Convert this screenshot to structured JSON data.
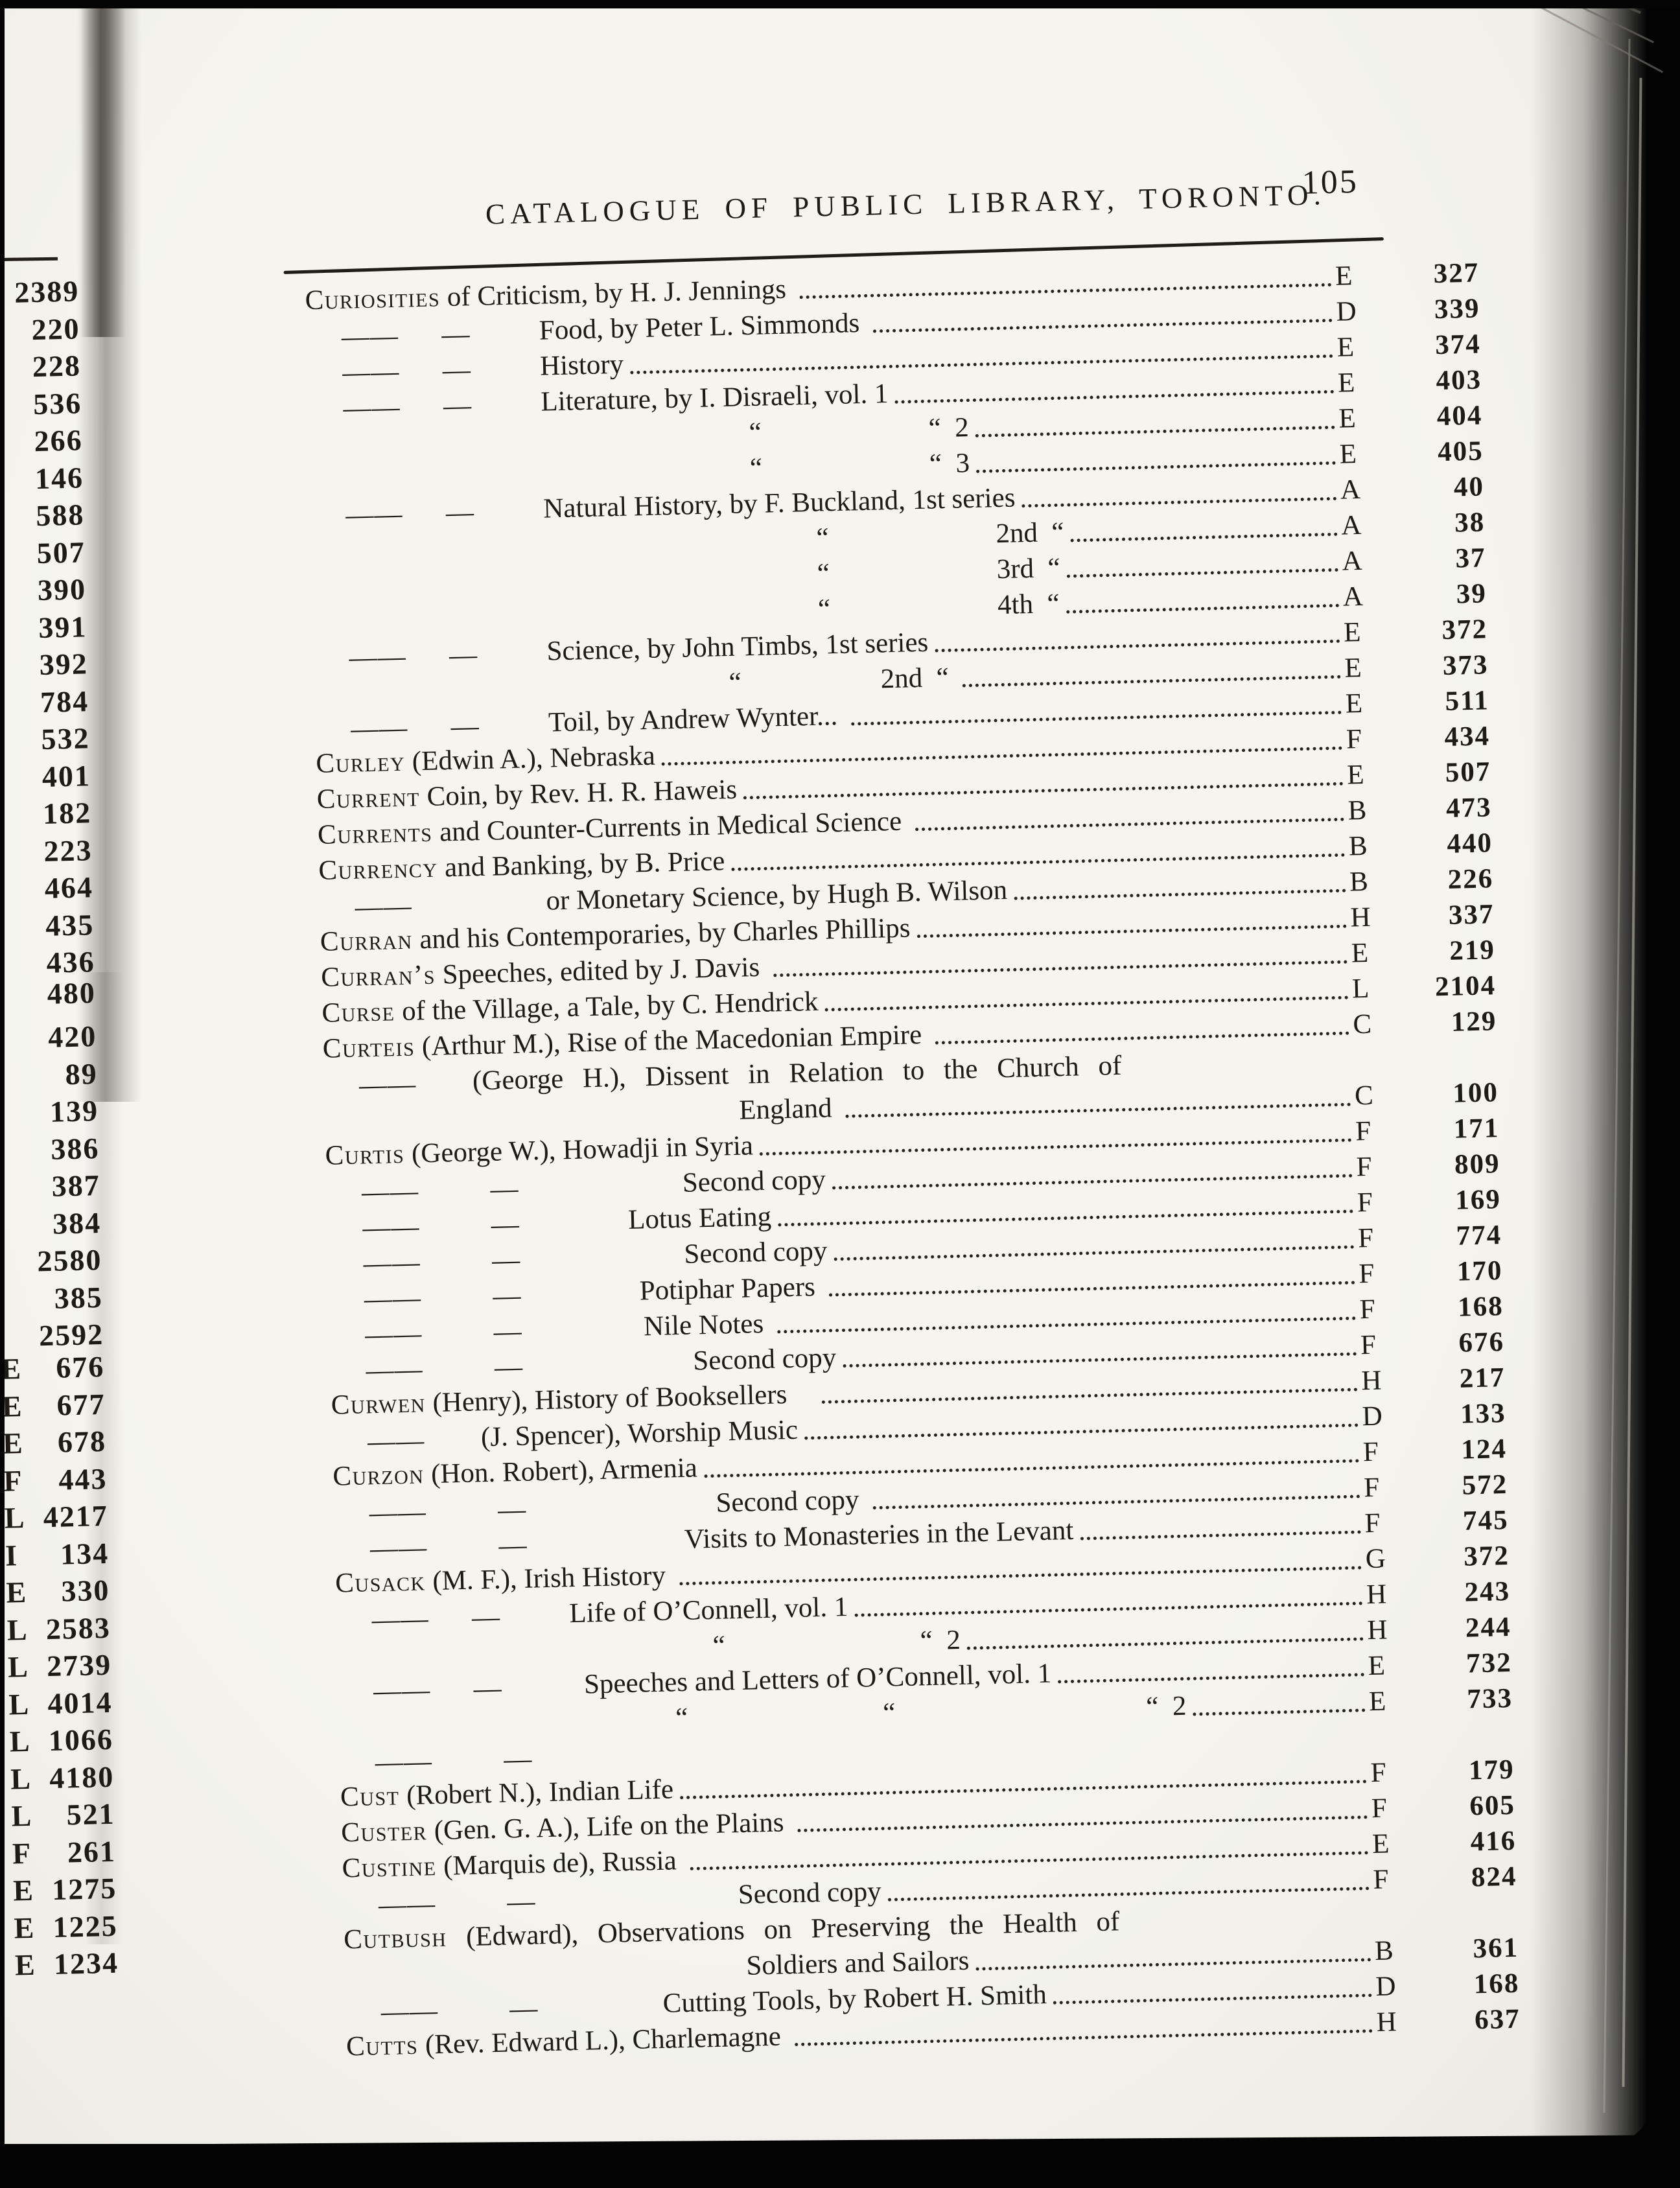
{
  "colors": {
    "paper": "#f5f4ef",
    "ink": "#1e1b17",
    "scan_black": "#050505"
  },
  "header": {
    "title": "CATALOGUE OF PUBLIC LIBRARY, TORONTO.",
    "page_number": "105"
  },
  "entries": [
    {
      "dashes": "",
      "head": "Curiosities",
      "text": " of Criticism, by H. J. Jennings ",
      "indent": 0,
      "leader": true,
      "code": "E",
      "num": "327"
    },
    {
      "dashes": "——  —",
      "head": "",
      "text": "Food, by Peter L. Simmonds ",
      "indent": 360,
      "leader": true,
      "code": "D",
      "num": "339"
    },
    {
      "dashes": "——  —",
      "head": "",
      "text": "History",
      "indent": 360,
      "leader": true,
      "code": "E",
      "num": "374"
    },
    {
      "dashes": "——  —",
      "head": "",
      "text": "Literature, by I. Disraeli, vol. 1",
      "indent": 360,
      "leader": true,
      "code": "E",
      "num": "403"
    },
    {
      "dashes": "",
      "head": "",
      "text": "“      “  2",
      "indent": 680,
      "leader": true,
      "code": "E",
      "num": "404"
    },
    {
      "dashes": "",
      "head": "",
      "text": "“      “  3",
      "indent": 680,
      "leader": true,
      "code": "E",
      "num": "405"
    },
    {
      "dashes": "——  —",
      "head": "",
      "text": "Natural History, by F. Buckland, 1st series",
      "indent": 360,
      "leader": true,
      "code": "A",
      "num": "40"
    },
    {
      "dashes": "",
      "head": "",
      "text": "“      2nd “",
      "indent": 780,
      "leader": true,
      "code": "A",
      "num": "38"
    },
    {
      "dashes": "",
      "head": "",
      "text": "“      3rd “",
      "indent": 780,
      "leader": true,
      "code": "A",
      "num": "37"
    },
    {
      "dashes": "",
      "head": "",
      "text": "“      4th “",
      "indent": 780,
      "leader": true,
      "code": "A",
      "num": "39"
    },
    {
      "dashes": "——  —",
      "head": "",
      "text": "Science, by John Timbs, 1st series",
      "indent": 360,
      "leader": true,
      "code": "E",
      "num": "372"
    },
    {
      "dashes": "",
      "head": "",
      "text": "“     2nd “ ",
      "indent": 640,
      "leader": true,
      "code": "E",
      "num": "373"
    },
    {
      "dashes": "——  —",
      "head": "",
      "text": "Toil, by Andrew Wynter... ",
      "indent": 360,
      "leader": true,
      "code": "E",
      "num": "511"
    },
    {
      "dashes": "",
      "head": "Curley",
      "text": " (Edwin A.), Nebraska",
      "indent": 0,
      "leader": true,
      "code": "F",
      "num": "434"
    },
    {
      "dashes": "",
      "head": "Current",
      "text": " Coin, by Rev. H. R. Haweis",
      "indent": 0,
      "leader": true,
      "code": "E",
      "num": "507"
    },
    {
      "dashes": "",
      "head": "Currents",
      "text": " and Counter-Currents in Medical Science ",
      "indent": 0,
      "leader": true,
      "code": "B",
      "num": "473"
    },
    {
      "dashes": "",
      "head": "Currency",
      "text": " and Banking, by B. Price",
      "indent": 0,
      "leader": true,
      "code": "B",
      "num": "440"
    },
    {
      "dashes": "——",
      "head": "",
      "text": "or Monetary Science, by Hugh B. Wilson",
      "indent": 350,
      "leader": true,
      "code": "B",
      "num": "226"
    },
    {
      "dashes": "",
      "head": "Curran",
      "text": " and his Contemporaries, by Charles Phillips",
      "indent": 0,
      "leader": true,
      "code": "H",
      "num": "337"
    },
    {
      "dashes": "",
      "head": "Curran’s",
      "text": " Speeches, edited by J. Davis ",
      "indent": 0,
      "leader": true,
      "code": "E",
      "num": "219"
    },
    {
      "dashes": "",
      "head": "Curse",
      "text": " of the Village, a Tale, by C. Hendrick",
      "indent": 0,
      "leader": true,
      "code": "L",
      "num": "2104"
    },
    {
      "dashes": "",
      "head": "Curteis",
      "text": " (Arthur M.), Rise of the Macedonian Empire ",
      "indent": 0,
      "leader": true,
      "code": "C",
      "num": "129"
    },
    {
      "dashes": "——",
      "head": "",
      "text": "(George H.), Dissent in Relation to the Church of",
      "indent": 230,
      "leader": false,
      "code": "",
      "num": "",
      "spread": true
    },
    {
      "dashes": "",
      "head": "",
      "text": "England ",
      "indent": 640,
      "leader": true,
      "code": "C",
      "num": "100"
    },
    {
      "dashes": "",
      "head": "Curtis",
      "text": " (George W.), Howadji in Syria",
      "indent": 0,
      "leader": true,
      "code": "F",
      "num": "171"
    },
    {
      "dashes": "——   —",
      "head": "",
      "text": "Second copy",
      "indent": 550,
      "leader": true,
      "code": "F",
      "num": "809"
    },
    {
      "dashes": "——   —",
      "head": "",
      "text": "Lotus Eating",
      "indent": 465,
      "leader": true,
      "code": "F",
      "num": "169"
    },
    {
      "dashes": "——   —",
      "head": "",
      "text": "Second copy",
      "indent": 550,
      "leader": true,
      "code": "F",
      "num": "774"
    },
    {
      "dashes": "——   —",
      "head": "",
      "text": "Potiphar Papers ",
      "indent": 480,
      "leader": true,
      "code": "F",
      "num": "170"
    },
    {
      "dashes": "——   —",
      "head": "",
      "text": "Nile Notes ",
      "indent": 485,
      "leader": true,
      "code": "F",
      "num": "168"
    },
    {
      "dashes": "——   —",
      "head": "",
      "text": "Second copy",
      "indent": 560,
      "leader": true,
      "code": "F",
      "num": "676"
    },
    {
      "dashes": "",
      "head": "Curwen",
      "text": " (Henry), History of Booksellers ",
      "indent": 0,
      "leader": true,
      "code": "H",
      "num": "217"
    },
    {
      "dashes": "——",
      "head": "",
      "text": "(J. Spencer), Worship Music",
      "indent": 230,
      "leader": true,
      "code": "D",
      "num": "133"
    },
    {
      "dashes": "",
      "head": "Curzon",
      "text": " (Hon. Robert), Armenia",
      "indent": 0,
      "leader": true,
      "code": "F",
      "num": "124"
    },
    {
      "dashes": "——   —",
      "head": "",
      "text": "Second copy ",
      "indent": 590,
      "leader": true,
      "code": "F",
      "num": "572"
    },
    {
      "dashes": "——   —",
      "head": "",
      "text": "Visits to Monasteries in the Levant",
      "indent": 540,
      "leader": true,
      "code": "F",
      "num": "745"
    },
    {
      "dashes": "",
      "head": "Cusack",
      "text": " (M. F.), Irish History ",
      "indent": 0,
      "leader": true,
      "code": "G",
      "num": "372"
    },
    {
      "dashes": "——  —",
      "head": "",
      "text": "Life of O’Connell, vol. 1",
      "indent": 360,
      "leader": true,
      "code": "H",
      "num": "243"
    },
    {
      "dashes": "",
      "head": "",
      "text": "“       “  2",
      "indent": 580,
      "leader": true,
      "code": "H",
      "num": "244"
    },
    {
      "dashes": "——  —",
      "head": "",
      "text": "Speeches and Letters of O’Connell, vol. 1",
      "indent": 380,
      "leader": true,
      "code": "E",
      "num": "732"
    },
    {
      "dashes": "",
      "head": "",
      "text": "“       “         “  2",
      "indent": 520,
      "leader": true,
      "code": "E",
      "num": "733"
    },
    {
      "dashes": "——   —",
      "head": "",
      "text": "",
      "indent": 0,
      "leader": false,
      "code": "",
      "num": ""
    },
    {
      "dashes": "",
      "head": "Cust",
      "text": " (Robert N.), Indian Life",
      "indent": 0,
      "leader": true,
      "code": "F",
      "num": "179"
    },
    {
      "dashes": "",
      "head": "Custer",
      "text": " (Gen. G. A.), Life on the Plains ",
      "indent": 0,
      "leader": true,
      "code": "F",
      "num": "605"
    },
    {
      "dashes": "",
      "head": "Custine",
      "text": " (Marquis de), Russia ",
      "indent": 0,
      "leader": true,
      "code": "E",
      "num": "416"
    },
    {
      "dashes": "——   —",
      "head": "",
      "text": "Second copy",
      "indent": 610,
      "leader": true,
      "code": "F",
      "num": "824"
    },
    {
      "dashes": "",
      "head": "Cutbush",
      "text": " (Edward), Observations on Preserving the Health of",
      "indent": 0,
      "leader": false,
      "code": "",
      "num": "",
      "spread": true
    },
    {
      "dashes": "",
      "head": "",
      "text": "Soldiers and Sailors",
      "indent": 620,
      "leader": true,
      "code": "B",
      "num": "361"
    },
    {
      "dashes": "——   —",
      "head": "",
      "text": "Cutting Tools, by Robert H. Smith",
      "indent": 490,
      "leader": true,
      "code": "D",
      "num": "168"
    },
    {
      "dashes": "",
      "head": "Cutts",
      "text": " (Rev. Edward L.), Charlemagne ",
      "indent": 0,
      "leader": true,
      "code": "H",
      "num": "637"
    }
  ],
  "margin_numbers": {
    "group1": [
      {
        "prefix": "",
        "num": "2389"
      },
      {
        "prefix": "",
        "num": "220"
      },
      {
        "prefix": "",
        "num": "228"
      },
      {
        "prefix": "",
        "num": "536"
      },
      {
        "prefix": "",
        "num": "266"
      },
      {
        "prefix": "",
        "num": "146"
      },
      {
        "prefix": "",
        "num": "588"
      },
      {
        "prefix": "",
        "num": "507"
      },
      {
        "prefix": "",
        "num": "390"
      },
      {
        "prefix": "",
        "num": "391"
      },
      {
        "prefix": "",
        "num": "392"
      },
      {
        "prefix": "",
        "num": "784"
      },
      {
        "prefix": "",
        "num": "532"
      },
      {
        "prefix": "",
        "num": "401"
      },
      {
        "prefix": "",
        "num": "182"
      },
      {
        "prefix": "",
        "num": "223"
      },
      {
        "prefix": "",
        "num": "464"
      },
      {
        "prefix": "",
        "num": "435"
      },
      {
        "prefix": "",
        "num": "436"
      }
    ],
    "group2": [
      {
        "prefix": "",
        "num": "480"
      }
    ],
    "group3": [
      {
        "prefix": "",
        "num": "420"
      },
      {
        "prefix": "",
        "num": "89"
      },
      {
        "prefix": "",
        "num": "139"
      },
      {
        "prefix": "",
        "num": "386"
      },
      {
        "prefix": "",
        "num": "387"
      },
      {
        "prefix": "",
        "num": "384"
      },
      {
        "prefix": "",
        "num": "2580"
      },
      {
        "prefix": "",
        "num": "385"
      },
      {
        "prefix": "",
        "num": "2592"
      }
    ],
    "group4": [
      {
        "prefix": "E",
        "num": "676"
      },
      {
        "prefix": "E",
        "num": "677"
      },
      {
        "prefix": "E",
        "num": "678"
      },
      {
        "prefix": "F",
        "num": "443"
      },
      {
        "prefix": "L",
        "num": "4217"
      },
      {
        "prefix": "I",
        "num": "134"
      },
      {
        "prefix": "E",
        "num": "330"
      },
      {
        "prefix": "L",
        "num": "2583"
      },
      {
        "prefix": "L",
        "num": "2739"
      },
      {
        "prefix": "L",
        "num": "4014"
      },
      {
        "prefix": "L",
        "num": "1066"
      },
      {
        "prefix": "L",
        "num": "4180"
      },
      {
        "prefix": "L",
        "num": "521"
      },
      {
        "prefix": "F",
        "num": "261"
      },
      {
        "prefix": "E",
        "num": "1275"
      },
      {
        "prefix": "E",
        "num": "1225"
      },
      {
        "prefix": "E",
        "num": "1234"
      }
    ]
  }
}
